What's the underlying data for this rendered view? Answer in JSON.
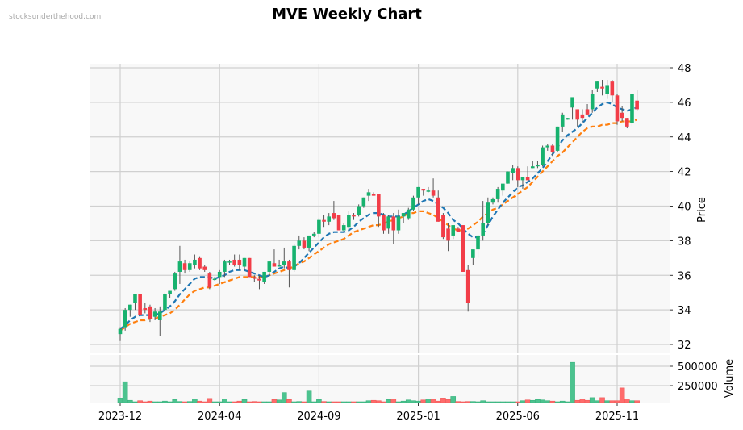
{
  "watermark": "stocksunderthehood.com",
  "title": "MVE Weekly Chart",
  "colors": {
    "up": "#17b26e",
    "down": "#f23d48",
    "vol_up": "#4cc38f",
    "vol_down": "#ff6b6b",
    "ma_fast": "#1f77b4",
    "ma_slow": "#ff7f0e",
    "panel_bg": "#f8f8f8",
    "grid": "#d0d0d0"
  },
  "chart_data": {
    "type": "candlestick",
    "title": "MVE Weekly Chart",
    "xlabel": "",
    "ylabel": "Price",
    "volume_label": "Volume",
    "ylim": [
      31.8,
      48.2
    ],
    "volume_ylim": [
      0,
      650000
    ],
    "price_ticks": [
      32,
      34,
      36,
      38,
      40,
      42,
      44,
      46,
      48
    ],
    "volume_ticks": [
      250000,
      500000
    ],
    "volume_tick_labels": [
      "250000",
      "500000"
    ],
    "x_tick_labels": [
      "2023-12",
      "2024-04",
      "2024-09",
      "2025-01",
      "2025-06",
      "2025-11"
    ],
    "x_tick_index": [
      0,
      20,
      40,
      60,
      80,
      100
    ],
    "grid": true,
    "series": [
      {
        "name": "MA fast (dashed blue)",
        "color": "#1f77b4"
      },
      {
        "name": "MA slow (dashed orange)",
        "color": "#ff7f0e"
      }
    ],
    "candles": [
      [
        32.6,
        33.0,
        32.2,
        32.9,
        90000
      ],
      [
        33.0,
        34.1,
        32.8,
        34.0,
        300000
      ],
      [
        34.0,
        34.3,
        33.6,
        34.3,
        60000
      ],
      [
        34.4,
        34.9,
        34.0,
        34.9,
        10000
      ],
      [
        34.9,
        34.9,
        33.7,
        33.7,
        55000
      ],
      [
        34.1,
        34.4,
        33.8,
        34.0,
        25000
      ],
      [
        34.2,
        34.3,
        33.3,
        33.5,
        50000
      ],
      [
        33.6,
        34.1,
        33.4,
        33.9,
        25000
      ],
      [
        33.4,
        34.2,
        32.5,
        33.9,
        30000
      ],
      [
        34.0,
        35.0,
        33.9,
        34.9,
        50000
      ],
      [
        34.9,
        35.1,
        34.7,
        35.1,
        40000
      ],
      [
        35.2,
        36.2,
        35.1,
        36.1,
        70000
      ],
      [
        36.2,
        37.7,
        35.5,
        36.8,
        45000
      ],
      [
        36.7,
        36.9,
        36.1,
        36.3,
        40000
      ],
      [
        36.3,
        36.8,
        36.2,
        36.7,
        45000
      ],
      [
        36.6,
        37.2,
        36.4,
        36.9,
        75000
      ],
      [
        37.0,
        37.1,
        36.3,
        36.4,
        50000
      ],
      [
        36.5,
        36.6,
        36.2,
        36.3,
        40000
      ],
      [
        36.1,
        36.2,
        35.2,
        35.3,
        85000
      ],
      [
        35.8,
        35.9,
        35.7,
        35.8,
        30000
      ],
      [
        35.9,
        36.3,
        35.5,
        36.2,
        30000
      ],
      [
        36.2,
        36.9,
        35.9,
        36.8,
        80000
      ],
      [
        36.8,
        36.9,
        36.6,
        36.8,
        40000
      ],
      [
        36.9,
        37.2,
        36.5,
        36.6,
        40000
      ],
      [
        36.9,
        37.2,
        36.3,
        36.6,
        50000
      ],
      [
        36.5,
        37.0,
        36.3,
        37.0,
        70000
      ],
      [
        37.0,
        37.0,
        35.9,
        35.9,
        30000
      ],
      [
        35.9,
        36.0,
        35.6,
        35.8,
        45000
      ],
      [
        35.8,
        36.0,
        35.2,
        35.7,
        40000
      ],
      [
        35.6,
        36.2,
        35.5,
        36.2,
        20000
      ],
      [
        36.2,
        36.8,
        36.0,
        36.8,
        30000
      ],
      [
        36.7,
        37.5,
        36.5,
        36.5,
        70000
      ],
      [
        36.5,
        36.9,
        36.5,
        36.6,
        65000
      ],
      [
        36.6,
        37.6,
        36.4,
        36.8,
        160000
      ],
      [
        36.8,
        36.9,
        35.3,
        36.3,
        70000
      ],
      [
        36.3,
        37.8,
        36.2,
        37.7,
        35000
      ],
      [
        37.7,
        38.3,
        37.5,
        38.0,
        45000
      ],
      [
        38.0,
        38.2,
        37.5,
        37.6,
        35000
      ],
      [
        37.6,
        38.3,
        37.4,
        38.3,
        180000
      ],
      [
        38.3,
        38.5,
        38.2,
        38.4,
        40000
      ],
      [
        38.4,
        39.3,
        38.2,
        39.2,
        70000
      ],
      [
        39.2,
        39.5,
        38.8,
        39.1,
        45000
      ],
      [
        39.1,
        39.6,
        38.9,
        39.4,
        35000
      ],
      [
        39.6,
        40.3,
        39.2,
        39.3,
        30000
      ],
      [
        39.5,
        39.5,
        38.6,
        38.6,
        25000
      ],
      [
        38.6,
        39.0,
        38.5,
        38.9,
        30000
      ],
      [
        38.8,
        39.7,
        38.6,
        39.5,
        30000
      ],
      [
        39.5,
        39.6,
        39.2,
        39.4,
        40000
      ],
      [
        39.5,
        40.1,
        39.4,
        40.0,
        25000
      ],
      [
        40.0,
        40.5,
        39.9,
        40.5,
        35000
      ],
      [
        40.6,
        41.0,
        40.3,
        40.8,
        55000
      ],
      [
        40.7,
        40.8,
        40.6,
        40.6,
        60000
      ],
      [
        40.7,
        40.7,
        38.8,
        39.4,
        55000
      ],
      [
        39.5,
        39.6,
        38.4,
        38.6,
        35000
      ],
      [
        38.7,
        39.5,
        38.4,
        39.4,
        70000
      ],
      [
        39.4,
        39.6,
        37.8,
        38.6,
        80000
      ],
      [
        38.6,
        39.8,
        38.4,
        39.4,
        30000
      ],
      [
        39.4,
        39.6,
        39.0,
        39.6,
        50000
      ],
      [
        39.3,
        39.9,
        39.2,
        39.8,
        65000
      ],
      [
        39.8,
        40.6,
        39.7,
        40.5,
        55000
      ],
      [
        40.5,
        41.1,
        40.1,
        41.1,
        50000
      ],
      [
        41.0,
        41.0,
        40.6,
        40.9,
        65000
      ],
      [
        40.9,
        41.1,
        40.8,
        40.9,
        75000
      ],
      [
        40.9,
        41.6,
        40.5,
        40.6,
        75000
      ],
      [
        40.5,
        40.9,
        39.1,
        39.1,
        50000
      ],
      [
        39.5,
        39.6,
        38.1,
        38.2,
        90000
      ],
      [
        38.7,
        39.0,
        37.4,
        38.0,
        70000
      ],
      [
        38.3,
        38.9,
        38.1,
        38.9,
        110000
      ],
      [
        38.7,
        38.8,
        38.5,
        38.5,
        45000
      ],
      [
        38.9,
        38.9,
        36.2,
        36.2,
        40000
      ],
      [
        36.3,
        36.6,
        33.9,
        34.4,
        45000
      ],
      [
        37.0,
        37.4,
        36.6,
        37.5,
        45000
      ],
      [
        37.5,
        38.3,
        37.0,
        38.3,
        20000
      ],
      [
        38.3,
        40.3,
        38.0,
        39.0,
        55000
      ],
      [
        39.0,
        40.5,
        38.9,
        40.2,
        30000
      ],
      [
        40.2,
        40.5,
        40.1,
        40.4,
        25000
      ],
      [
        40.4,
        41.1,
        40.2,
        41.0,
        25000
      ],
      [
        40.9,
        41.2,
        40.6,
        41.3,
        25000
      ],
      [
        41.3,
        42.0,
        41.3,
        42.0,
        15000
      ],
      [
        41.9,
        42.4,
        41.5,
        42.2,
        40000
      ],
      [
        42.2,
        42.3,
        41.1,
        41.5,
        40000
      ],
      [
        41.5,
        41.7,
        41.0,
        41.7,
        55000
      ],
      [
        41.7,
        42.3,
        41.5,
        41.5,
        65000
      ],
      [
        42.2,
        42.6,
        42.2,
        42.3,
        60000
      ],
      [
        42.3,
        42.6,
        42.2,
        42.4,
        70000
      ],
      [
        42.4,
        43.5,
        42.3,
        43.4,
        65000
      ],
      [
        43.4,
        43.6,
        43.2,
        43.5,
        55000
      ],
      [
        43.5,
        43.6,
        42.9,
        43.1,
        50000
      ],
      [
        43.2,
        44.6,
        43.1,
        44.6,
        35000
      ],
      [
        44.6,
        45.4,
        44.3,
        45.3,
        50000
      ],
      [
        45.0,
        45.1,
        45.0,
        45.1,
        40000
      ],
      [
        45.7,
        46.2,
        45.0,
        46.3,
        550000
      ],
      [
        45.6,
        45.6,
        44.6,
        45.0,
        60000
      ],
      [
        45.3,
        45.6,
        44.8,
        45.1,
        75000
      ],
      [
        45.6,
        45.9,
        45.3,
        45.3,
        60000
      ],
      [
        45.6,
        46.7,
        45.4,
        46.5,
        95000
      ],
      [
        46.8,
        47.2,
        46.6,
        47.2,
        55000
      ],
      [
        46.9,
        47.3,
        46.4,
        46.8,
        95000
      ],
      [
        46.5,
        47.3,
        46.2,
        47.0,
        55000
      ],
      [
        47.2,
        47.3,
        46.0,
        46.4,
        55000
      ],
      [
        46.4,
        46.5,
        44.7,
        44.9,
        55000
      ],
      [
        45.4,
        45.8,
        44.9,
        45.1,
        220000
      ],
      [
        45.1,
        45.1,
        44.5,
        44.6,
        80000
      ],
      [
        44.8,
        46.5,
        44.6,
        46.5,
        55000
      ],
      [
        46.1,
        46.7,
        45.5,
        45.6,
        55000
      ]
    ],
    "ma_fast": [
      32.9,
      33.1,
      33.4,
      33.6,
      33.7,
      33.7,
      33.7,
      33.7,
      33.8,
      34.0,
      34.2,
      34.5,
      34.9,
      35.2,
      35.5,
      35.8,
      35.9,
      35.9,
      35.9,
      35.8,
      35.9,
      36.0,
      36.2,
      36.3,
      36.3,
      36.3,
      36.2,
      36.1,
      36.0,
      35.9,
      36.0,
      36.2,
      36.4,
      36.5,
      36.4,
      36.5,
      36.7,
      37.0,
      37.3,
      37.6,
      37.9,
      38.2,
      38.4,
      38.5,
      38.5,
      38.5,
      38.6,
      38.8,
      39.1,
      39.3,
      39.5,
      39.6,
      39.6,
      39.5,
      39.4,
      39.4,
      39.4,
      39.5,
      39.7,
      39.9,
      40.1,
      40.3,
      40.4,
      40.3,
      40.1,
      39.9,
      39.6,
      39.2,
      39.0,
      38.7,
      38.4,
      38.2,
      38.2,
      38.4,
      38.9,
      39.4,
      39.8,
      40.2,
      40.5,
      40.8,
      41.1,
      41.2,
      41.4,
      41.6,
      41.9,
      42.2,
      42.6,
      43.0,
      43.4,
      43.8,
      44.1,
      44.3,
      44.5,
      44.8,
      45.1,
      45.4,
      45.7,
      45.9,
      46.0,
      45.9,
      45.7,
      45.6,
      45.5,
      45.6,
      45.7
    ],
    "ma_slow": [
      32.8,
      33.0,
      33.2,
      33.3,
      33.4,
      33.4,
      33.5,
      33.5,
      33.6,
      33.7,
      33.8,
      34.0,
      34.3,
      34.6,
      34.9,
      35.1,
      35.2,
      35.3,
      35.3,
      35.4,
      35.5,
      35.6,
      35.7,
      35.8,
      35.9,
      35.9,
      35.9,
      35.9,
      35.9,
      35.9,
      36.0,
      36.1,
      36.2,
      36.3,
      36.4,
      36.5,
      36.7,
      36.8,
      37.0,
      37.2,
      37.4,
      37.6,
      37.8,
      37.9,
      38.0,
      38.1,
      38.3,
      38.5,
      38.6,
      38.7,
      38.8,
      38.9,
      38.9,
      39.0,
      39.1,
      39.2,
      39.3,
      39.4,
      39.6,
      39.6,
      39.7,
      39.7,
      39.6,
      39.5,
      39.3,
      39.1,
      38.9,
      38.7,
      38.6,
      38.6,
      38.7,
      38.9,
      39.1,
      39.4,
      39.6,
      39.8,
      39.9,
      40.1,
      40.3,
      40.5,
      40.7,
      40.9,
      41.1,
      41.4,
      41.7,
      42.0,
      42.3,
      42.6,
      42.9,
      43.1,
      43.4,
      43.7,
      44.0,
      44.3,
      44.5,
      44.6,
      44.6,
      44.7,
      44.7,
      44.8,
      44.8,
      44.9,
      44.9,
      44.9,
      45.0
    ]
  }
}
